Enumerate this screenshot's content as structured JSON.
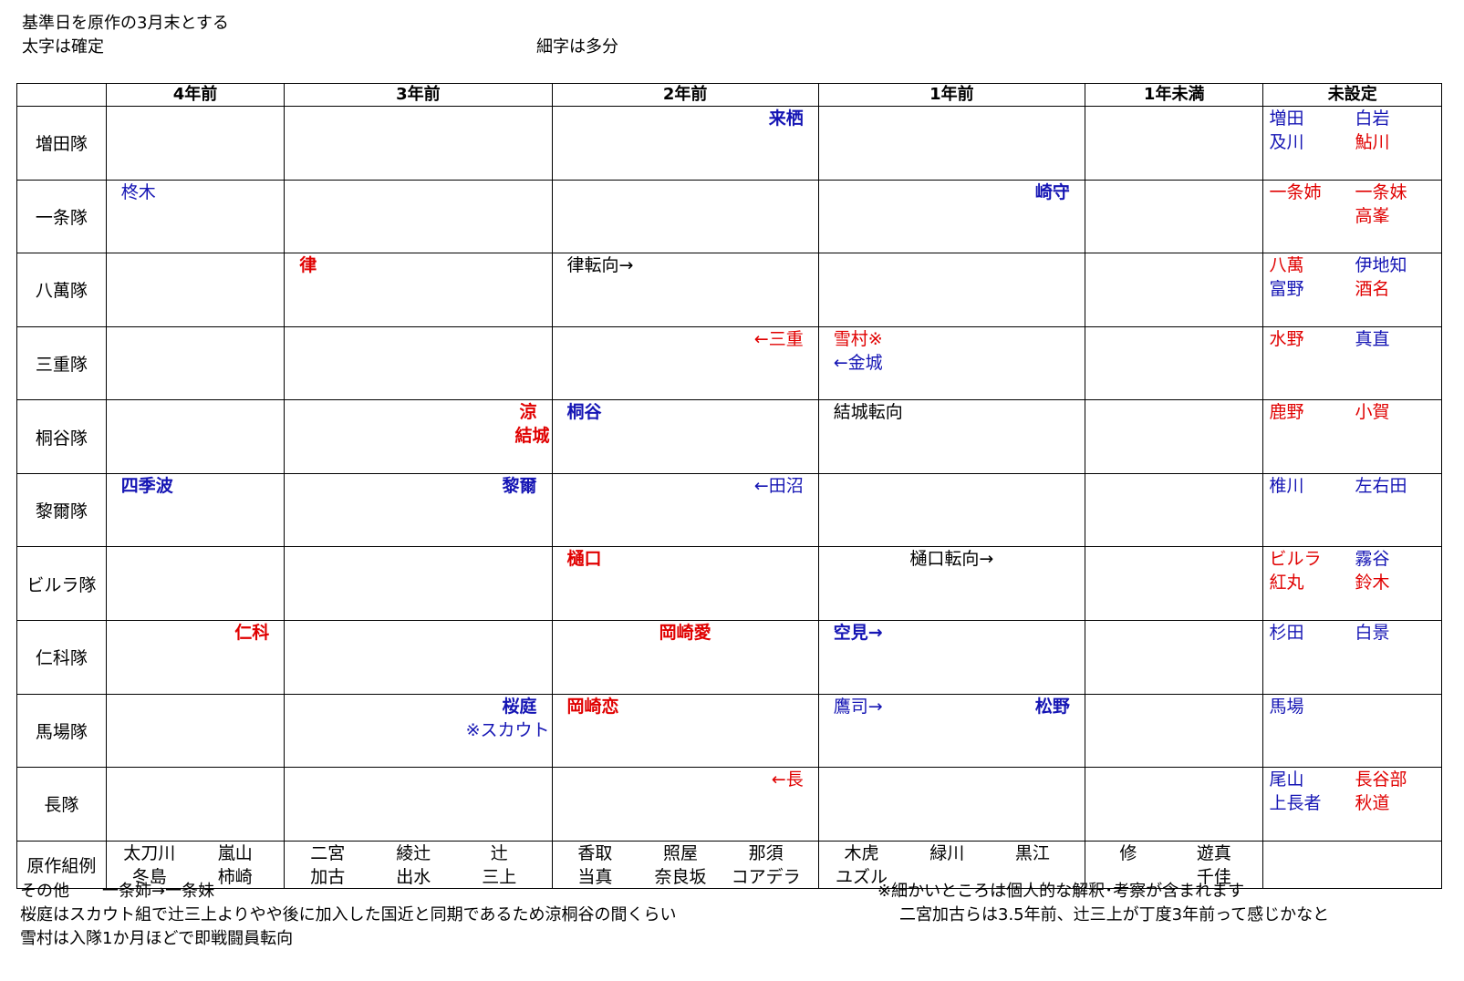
{
  "notes": {
    "line1": "基準日を原作の3月末とする",
    "line2": "太字は確定",
    "line3": "細字は多分"
  },
  "headers": [
    "4年前",
    "3年前",
    "2年前",
    "1年前",
    "1年未満",
    "未設定"
  ],
  "rows": [
    {
      "label": "増田隊",
      "entries": [
        {
          "col": 2,
          "text": "来栖",
          "color": "#1515b4",
          "bold": true,
          "pos": "tr"
        }
      ],
      "unset": [
        {
          "text": "増田",
          "color": "#1515b4"
        },
        {
          "text": "白岩",
          "color": "#1515b4"
        },
        {
          "text": "及川",
          "color": "#1515b4"
        },
        {
          "text": "鮎川",
          "color": "#e00000"
        }
      ]
    },
    {
      "label": "一条隊",
      "entries": [
        {
          "col": 0,
          "text": "柊木",
          "color": "#1515b4",
          "bold": false,
          "pos": "tl"
        },
        {
          "col": 3,
          "text": "崎守",
          "color": "#1515b4",
          "bold": true,
          "pos": "tr"
        }
      ],
      "unset": [
        {
          "text": "一条姉",
          "color": "#e00000"
        },
        {
          "text": "一条妹",
          "color": "#e00000"
        },
        {
          "text": "",
          "color": "#000000"
        },
        {
          "text": "高峯",
          "color": "#e00000"
        }
      ]
    },
    {
      "label": "八萬隊",
      "entries": [
        {
          "col": 1,
          "text": "律",
          "color": "#e00000",
          "bold": true,
          "pos": "tl"
        },
        {
          "col": 2,
          "text": "律転向→",
          "color": "#000000",
          "bold": false,
          "pos": "tl"
        }
      ],
      "unset": [
        {
          "text": "八萬",
          "color": "#e00000"
        },
        {
          "text": "伊地知",
          "color": "#1515b4"
        },
        {
          "text": "富野",
          "color": "#1515b4"
        },
        {
          "text": "酒名",
          "color": "#e00000"
        }
      ]
    },
    {
      "label": "三重隊",
      "entries": [
        {
          "col": 2,
          "text": "←三重",
          "color": "#e00000",
          "bold": false,
          "pos": "tr"
        },
        {
          "col": 3,
          "text": "雪村※",
          "color": "#e00000",
          "bold": false,
          "pos": "tl"
        },
        {
          "col": 3,
          "text": "←金城",
          "color": "#1515b4",
          "bold": false,
          "pos": "tl2"
        }
      ],
      "unset": [
        {
          "text": "水野",
          "color": "#e00000"
        },
        {
          "text": "真直",
          "color": "#1515b4"
        },
        {
          "text": "",
          "color": "#000000"
        },
        {
          "text": "",
          "color": "#000000"
        }
      ]
    },
    {
      "label": "桐谷隊",
      "entries": [
        {
          "col": 1,
          "text": "涼",
          "color": "#e00000",
          "bold": true,
          "pos": "tr"
        },
        {
          "col": 1,
          "text": "結城",
          "color": "#e00000",
          "bold": true,
          "pos": "tr2"
        },
        {
          "col": 2,
          "text": "桐谷",
          "color": "#1515b4",
          "bold": true,
          "pos": "tl"
        },
        {
          "col": 3,
          "text": "結城転向",
          "color": "#000000",
          "bold": false,
          "pos": "tl"
        }
      ],
      "unset": [
        {
          "text": "鹿野",
          "color": "#e00000"
        },
        {
          "text": "小賀",
          "color": "#e00000"
        },
        {
          "text": "",
          "color": "#000000"
        },
        {
          "text": "",
          "color": "#000000"
        }
      ]
    },
    {
      "label": "黎爾隊",
      "entries": [
        {
          "col": 0,
          "text": "四季波",
          "color": "#1515b4",
          "bold": true,
          "pos": "tl"
        },
        {
          "col": 1,
          "text": "黎爾",
          "color": "#1515b4",
          "bold": true,
          "pos": "tr"
        },
        {
          "col": 2,
          "text": "←田沼",
          "color": "#1515b4",
          "bold": false,
          "pos": "tr"
        }
      ],
      "unset": [
        {
          "text": "椎川",
          "color": "#1515b4"
        },
        {
          "text": "左右田",
          "color": "#1515b4"
        },
        {
          "text": "",
          "color": "#000000"
        },
        {
          "text": "",
          "color": "#000000"
        }
      ]
    },
    {
      "label": "ビルラ隊",
      "plain": true,
      "entries": [
        {
          "col": 2,
          "text": "樋口",
          "color": "#e00000",
          "bold": true,
          "pos": "tl"
        },
        {
          "col": 3,
          "text": "樋口転向→",
          "color": "#000000",
          "bold": false,
          "pos": "tc"
        }
      ],
      "unset": [
        {
          "text": "ビルラ",
          "color": "#e00000"
        },
        {
          "text": "霧谷",
          "color": "#1515b4"
        },
        {
          "text": "紅丸",
          "color": "#e00000"
        },
        {
          "text": "鈴木",
          "color": "#e00000"
        }
      ]
    },
    {
      "label": "仁科隊",
      "entries": [
        {
          "col": 0,
          "text": "仁科",
          "color": "#e00000",
          "bold": true,
          "pos": "tr"
        },
        {
          "col": 2,
          "text": "岡崎愛",
          "color": "#e00000",
          "bold": true,
          "pos": "tc"
        },
        {
          "col": 3,
          "text": "空見→",
          "color": "#1515b4",
          "bold": true,
          "pos": "tl"
        }
      ],
      "unset": [
        {
          "text": "杉田",
          "color": "#1515b4"
        },
        {
          "text": "白景",
          "color": "#1515b4"
        },
        {
          "text": "",
          "color": "#000000"
        },
        {
          "text": "",
          "color": "#000000"
        }
      ]
    },
    {
      "label": "馬場隊",
      "entries": [
        {
          "col": 1,
          "text": "桜庭",
          "color": "#1515b4",
          "bold": true,
          "pos": "tr"
        },
        {
          "col": 1,
          "text": "※スカウト",
          "color": "#1515b4",
          "bold": false,
          "pos": "tr2"
        },
        {
          "col": 2,
          "text": "岡崎恋",
          "color": "#e00000",
          "bold": true,
          "pos": "tl"
        },
        {
          "col": 3,
          "text": "鷹司→",
          "color": "#1515b4",
          "bold": false,
          "pos": "tl"
        },
        {
          "col": 3,
          "text": "松野",
          "color": "#1515b4",
          "bold": true,
          "pos": "tr"
        }
      ],
      "unset": [
        {
          "text": "馬場",
          "color": "#1515b4"
        },
        {
          "text": "",
          "color": "#000000"
        },
        {
          "text": "",
          "color": "#000000"
        },
        {
          "text": "",
          "color": "#000000"
        }
      ]
    },
    {
      "label": "長隊",
      "entries": [
        {
          "col": 2,
          "text": "←長",
          "color": "#e00000",
          "bold": false,
          "pos": "tr"
        }
      ],
      "unset": [
        {
          "text": "尾山",
          "color": "#1515b4"
        },
        {
          "text": "長谷部",
          "color": "#e00000"
        },
        {
          "text": "上長者",
          "color": "#1515b4"
        },
        {
          "text": "秋道",
          "color": "#e00000"
        }
      ]
    }
  ],
  "example_row": {
    "label": "原作組例",
    "cols": [
      [
        [
          "太刀川",
          "冬島"
        ],
        [
          "嵐山",
          "柿崎"
        ]
      ],
      [
        [
          "二宮",
          "加古"
        ],
        [
          "綾辻",
          "出水"
        ],
        [
          "辻",
          "三上"
        ]
      ],
      [
        [
          "香取",
          "当真"
        ],
        [
          "照屋",
          "奈良坂"
        ],
        [
          "那須",
          "コアデラ"
        ]
      ],
      [
        [
          "木虎",
          "ユズル"
        ],
        [
          "緑川",
          ""
        ],
        [
          "黒江",
          ""
        ]
      ],
      [
        [
          "修",
          ""
        ],
        [
          "遊真",
          "千佳"
        ]
      ],
      []
    ]
  },
  "footer": {
    "left1": "その他　　一条姉→一条妹",
    "left2": "桜庭はスカウト組で辻三上よりやや後に加入した国近と同期であるため涼桐谷の間くらい",
    "left3": "雪村は入隊1か月ほどで即戦闘員転向",
    "right1": "※細かいところは個人的な解釈･考察が含まれます",
    "right2": "二宮加古らは3.5年前、辻三上が丁度3年前って感じかなと"
  }
}
